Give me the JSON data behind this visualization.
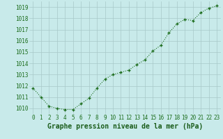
{
  "x": [
    0,
    1,
    2,
    3,
    4,
    5,
    6,
    7,
    8,
    9,
    10,
    11,
    12,
    13,
    14,
    15,
    16,
    17,
    18,
    19,
    20,
    21,
    22,
    23
  ],
  "y": [
    1011.8,
    1011.0,
    1010.2,
    1010.0,
    1009.9,
    1009.9,
    1010.4,
    1010.9,
    1011.8,
    1012.6,
    1013.0,
    1013.2,
    1013.4,
    1013.9,
    1014.3,
    1015.1,
    1015.6,
    1016.7,
    1017.5,
    1017.9,
    1017.8,
    1018.5,
    1018.9,
    1019.1
  ],
  "ylim": [
    1009.5,
    1019.5
  ],
  "yticks": [
    1010,
    1011,
    1012,
    1013,
    1014,
    1015,
    1016,
    1017,
    1018,
    1019
  ],
  "xticks": [
    0,
    1,
    2,
    3,
    4,
    5,
    6,
    7,
    8,
    9,
    10,
    11,
    12,
    13,
    14,
    15,
    16,
    17,
    18,
    19,
    20,
    21,
    22,
    23
  ],
  "line_color": "#1a6b1a",
  "marker_color": "#1a6b1a",
  "bg_color": "#c8eaea",
  "grid_color": "#a8c8c8",
  "xlabel": "Graphe pression niveau de la mer (hPa)",
  "xlabel_color": "#1a5c1a",
  "tick_color": "#1a6b1a",
  "tick_fontsize": 5.5,
  "xlabel_fontsize": 7.0
}
